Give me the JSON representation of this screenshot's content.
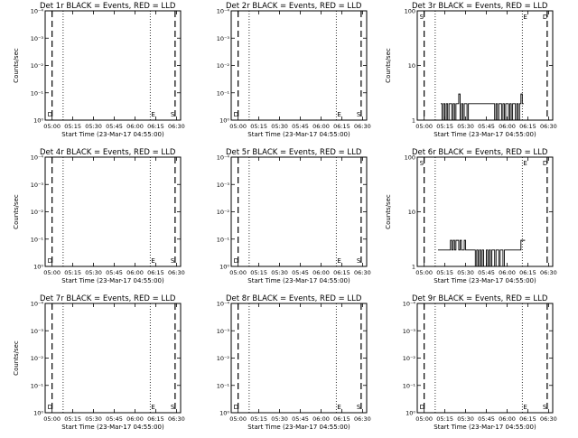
{
  "x_tick_labels": [
    "05:00",
    "05:15",
    "05:30",
    "05:45",
    "06:00",
    "06:15",
    "06:30"
  ],
  "x_axis_label": "Start Time (23-Mar-17 04:55:00)",
  "y_axis_label": "Counts/sec",
  "markers": {
    "S": "S",
    "E": "E",
    "D": "D"
  },
  "chart_data": [
    {
      "type": "line",
      "title": "Det 1r BLACK = Events, RED = LLD",
      "xlabel": "Start Time (23-Mar-17 04:55:00)",
      "ylabel": "Counts/sec",
      "x_ticks": [
        "05:00",
        "05:15",
        "05:30",
        "05:45",
        "06:00",
        "06:15",
        "06:30"
      ],
      "xlim": [
        "04:55",
        "06:33"
      ],
      "y_scale": "log",
      "ylim": [
        1,
        0.0001
      ],
      "y_ticks": [
        "10⁰",
        "10⁻¹",
        "10⁻²",
        "10⁻³",
        "10⁻⁴"
      ],
      "vlines": {
        "dashed": [
          "05:00",
          "06:29"
        ],
        "dotted": [
          "05:08",
          "06:11"
        ]
      },
      "markers_shown": [
        "D",
        "E",
        "S"
      ],
      "series": []
    },
    {
      "type": "line",
      "title": "Det 2r BLACK = Events, RED = LLD",
      "xlabel": "Start Time (23-Mar-17 04:55:00)",
      "ylabel": "",
      "x_ticks": [
        "05:00",
        "05:15",
        "05:30",
        "05:45",
        "06:00",
        "06:15",
        "06:30"
      ],
      "xlim": [
        "04:55",
        "06:33"
      ],
      "y_scale": "log",
      "ylim": [
        1,
        0.0001
      ],
      "y_ticks": [
        "10⁰",
        "10⁻¹",
        "10⁻²",
        "10⁻³",
        "10⁻⁴"
      ],
      "vlines": {
        "dashed": [
          "05:00",
          "06:29"
        ],
        "dotted": [
          "05:08",
          "06:11"
        ]
      },
      "markers_shown": [
        "D",
        "E",
        "S"
      ],
      "series": []
    },
    {
      "type": "line",
      "title": "Det 3r BLACK = Events, RED = LLD",
      "xlabel": "Start Time (23-Mar-17 04:55:00)",
      "ylabel": "Counts/sec",
      "x_ticks": [
        "05:00",
        "05:15",
        "05:30",
        "05:45",
        "06:00",
        "06:15",
        "06:30"
      ],
      "xlim": [
        "04:55",
        "06:33"
      ],
      "y_scale": "log",
      "ylim": [
        1,
        100
      ],
      "y_ticks": [
        "1",
        "10",
        "100"
      ],
      "vlines": {
        "dashed": [
          "05:00",
          "06:29"
        ],
        "dotted": [
          "05:08",
          "06:11"
        ]
      },
      "markers_shown": [
        "S",
        "E",
        "D"
      ],
      "series": [
        {
          "name": "",
          "x": [
            "05:12",
            "05:13",
            "05:14",
            "05:15",
            "05:16",
            "05:17",
            "05:18",
            "05:19",
            "05:20",
            "05:21",
            "05:22",
            "05:23",
            "05:24",
            "05:25",
            "05:26",
            "05:27",
            "05:28",
            "05:29",
            "05:30",
            "05:31",
            "05:32",
            "05:33",
            "05:50",
            "05:51",
            "05:52",
            "05:53",
            "05:54",
            "05:55",
            "05:56",
            "05:57",
            "05:58",
            "05:59",
            "06:00",
            "06:01",
            "06:02",
            "06:03",
            "06:04",
            "06:05",
            "06:06",
            "06:07",
            "06:08",
            "06:09",
            "06:10",
            "06:11"
          ],
          "y": [
            2,
            1,
            2,
            1,
            2,
            1,
            2,
            2,
            1,
            2,
            1,
            2,
            2,
            3,
            1,
            2,
            1,
            2,
            2,
            1,
            2,
            2,
            2,
            1,
            2,
            1,
            2,
            2,
            1,
            2,
            1,
            2,
            2,
            1,
            2,
            1,
            2,
            2,
            1,
            2,
            1,
            2,
            3,
            2
          ]
        }
      ]
    },
    {
      "type": "line",
      "title": "Det 4r BLACK = Events, RED = LLD",
      "xlabel": "Start Time (23-Mar-17 04:55:00)",
      "ylabel": "Counts/sec",
      "x_ticks": [
        "05:00",
        "05:15",
        "05:30",
        "05:45",
        "06:00",
        "06:15",
        "06:30"
      ],
      "xlim": [
        "04:55",
        "06:33"
      ],
      "y_scale": "log",
      "ylim": [
        1,
        0.0001
      ],
      "y_ticks": [
        "10⁰",
        "10⁻¹",
        "10⁻²",
        "10⁻³",
        "10⁻⁴"
      ],
      "vlines": {
        "dashed": [
          "05:00",
          "06:29"
        ],
        "dotted": [
          "05:08",
          "06:11"
        ]
      },
      "markers_shown": [
        "D",
        "E",
        "S"
      ],
      "series": []
    },
    {
      "type": "line",
      "title": "Det 5r BLACK = Events, RED = LLD",
      "xlabel": "Start Time (23-Mar-17 04:55:00)",
      "ylabel": "",
      "x_ticks": [
        "05:00",
        "05:15",
        "05:30",
        "05:45",
        "06:00",
        "06:15",
        "06:30"
      ],
      "xlim": [
        "04:55",
        "06:33"
      ],
      "y_scale": "log",
      "ylim": [
        1,
        0.0001
      ],
      "y_ticks": [
        "10⁰",
        "10⁻¹",
        "10⁻²",
        "10⁻³",
        "10⁻⁴"
      ],
      "vlines": {
        "dashed": [
          "05:00",
          "06:29"
        ],
        "dotted": [
          "05:08",
          "06:11"
        ]
      },
      "markers_shown": [
        "D",
        "E",
        "S"
      ],
      "series": []
    },
    {
      "type": "line",
      "title": "Det 6r BLACK = Events, RED = LLD",
      "xlabel": "Start Time (23-Mar-17 04:55:00)",
      "ylabel": "Counts/sec",
      "x_ticks": [
        "05:00",
        "05:15",
        "05:30",
        "05:45",
        "06:00",
        "06:15",
        "06:30"
      ],
      "xlim": [
        "04:55",
        "06:33"
      ],
      "y_scale": "log",
      "ylim": [
        1,
        100
      ],
      "y_ticks": [
        "1",
        "10",
        "100"
      ],
      "vlines": {
        "dashed": [
          "05:00",
          "06:29"
        ],
        "dotted": [
          "05:08",
          "06:11"
        ]
      },
      "markers_shown": [
        "S",
        "E",
        "D"
      ],
      "series": [
        {
          "name": "",
          "x": [
            "05:10",
            "05:11",
            "05:12",
            "05:13",
            "05:14",
            "05:15",
            "05:16",
            "05:17",
            "05:18",
            "05:19",
            "05:20",
            "05:21",
            "05:22",
            "05:23",
            "05:24",
            "05:25",
            "05:26",
            "05:27",
            "05:28",
            "05:29",
            "05:30",
            "05:31",
            "05:32",
            "05:33",
            "05:34",
            "05:35",
            "05:36",
            "05:37",
            "05:38",
            "05:39",
            "05:40",
            "05:41",
            "05:42",
            "05:43",
            "05:44",
            "05:45",
            "05:46",
            "05:47",
            "05:48",
            "05:49",
            "05:50",
            "05:51",
            "05:52",
            "05:53",
            "05:54",
            "05:55",
            "05:56",
            "05:57",
            "05:58",
            "05:59",
            "06:00",
            "06:01",
            "06:02",
            "06:03",
            "06:04",
            "06:05",
            "06:06",
            "06:07",
            "06:08",
            "06:09",
            "06:10",
            "06:11",
            "06:12"
          ],
          "y": [
            2,
            2,
            2,
            2,
            2,
            2,
            2,
            2,
            2,
            3,
            2,
            3,
            2,
            3,
            3,
            2,
            3,
            2,
            2,
            3,
            2,
            2,
            2,
            2,
            2,
            2,
            2,
            1,
            2,
            1,
            2,
            1,
            2,
            1,
            1,
            2,
            1,
            2,
            1,
            2,
            2,
            1,
            2,
            2,
            1,
            2,
            2,
            1,
            2,
            2,
            2,
            2,
            2,
            2,
            2,
            2,
            2,
            2,
            2,
            2,
            3,
            3,
            3
          ]
        }
      ]
    },
    {
      "type": "line",
      "title": "Det 7r BLACK = Events, RED = LLD",
      "xlabel": "Start Time (23-Mar-17 04:55:00)",
      "ylabel": "Counts/sec",
      "x_ticks": [
        "05:00",
        "05:15",
        "05:30",
        "05:45",
        "06:00",
        "06:15",
        "06:30"
      ],
      "xlim": [
        "04:55",
        "06:33"
      ],
      "y_scale": "log",
      "ylim": [
        1,
        0.0001
      ],
      "y_ticks": [
        "10⁰",
        "10⁻¹",
        "10⁻²",
        "10⁻³",
        "10⁻⁴"
      ],
      "vlines": {
        "dashed": [
          "05:00",
          "06:29"
        ],
        "dotted": [
          "05:08",
          "06:11"
        ]
      },
      "markers_shown": [
        "D",
        "E",
        "S"
      ],
      "series": []
    },
    {
      "type": "line",
      "title": "Det 8r BLACK = Events, RED = LLD",
      "xlabel": "Start Time (23-Mar-17 04:55:00)",
      "ylabel": "",
      "x_ticks": [
        "05:00",
        "05:15",
        "05:30",
        "05:45",
        "06:00",
        "06:15",
        "06:30"
      ],
      "xlim": [
        "04:55",
        "06:33"
      ],
      "y_scale": "log",
      "ylim": [
        1,
        0.0001
      ],
      "y_ticks": [
        "10⁰",
        "10⁻¹",
        "10⁻²",
        "10⁻³",
        "10⁻⁴"
      ],
      "vlines": {
        "dashed": [
          "05:00",
          "06:29"
        ],
        "dotted": [
          "05:08",
          "06:11"
        ]
      },
      "markers_shown": [
        "D",
        "E",
        "S"
      ],
      "series": []
    },
    {
      "type": "line",
      "title": "Det 9r BLACK = Events, RED = LLD",
      "xlabel": "Start Time (23-Mar-17 04:55:00)",
      "ylabel": "",
      "x_ticks": [
        "05:00",
        "05:15",
        "05:30",
        "05:45",
        "06:00",
        "06:15",
        "06:30"
      ],
      "xlim": [
        "04:55",
        "06:33"
      ],
      "y_scale": "log",
      "ylim": [
        1,
        0.0001
      ],
      "y_ticks": [
        "10⁰",
        "10⁻¹",
        "10⁻²",
        "10⁻³",
        "10⁻⁴"
      ],
      "vlines": {
        "dashed": [
          "05:00",
          "06:29"
        ],
        "dotted": [
          "05:08",
          "06:11"
        ]
      },
      "markers_shown": [
        "S",
        "E",
        "D"
      ],
      "series": []
    }
  ]
}
